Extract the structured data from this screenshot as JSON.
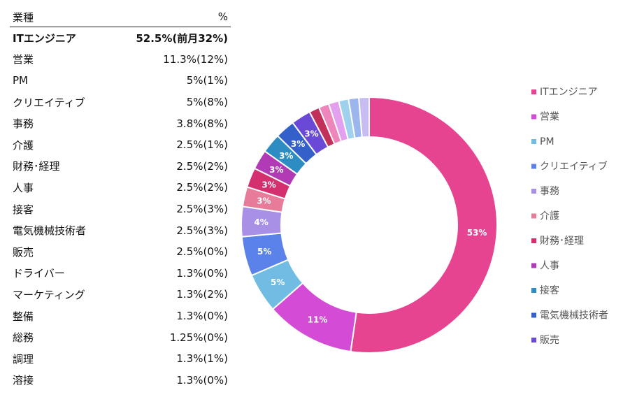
{
  "table": {
    "header": {
      "label": "業種",
      "value": "%"
    },
    "rows": [
      {
        "label": "ITエンジニア",
        "value": "52.5%(前月32%)",
        "bold": true
      },
      {
        "label": "営業",
        "value": "11.3%(12%)"
      },
      {
        "label": "PM",
        "value": "5%(1%)"
      },
      {
        "label": "クリエイティブ",
        "value": "5%(8%)"
      },
      {
        "label": "事務",
        "value": "3.8%(8%)"
      },
      {
        "label": "介護",
        "value": "2.5%(1%)"
      },
      {
        "label": "財務･経理",
        "value": "2.5%(2%)"
      },
      {
        "label": "人事",
        "value": "2.5%(2%)"
      },
      {
        "label": "接客",
        "value": "2.5%(3%)"
      },
      {
        "label": "電気機械技術者",
        "value": "2.5%(3%)"
      },
      {
        "label": "販売",
        "value": "2.5%(0%)"
      },
      {
        "label": "ドライバー",
        "value": "1.3%(0%)"
      },
      {
        "label": "マーケティング",
        "value": "1.3%(2%)"
      },
      {
        "label": "整備",
        "value": "1.3%(0%)"
      },
      {
        "label": "総務",
        "value": "1.25%(0%)"
      },
      {
        "label": "調理",
        "value": "1.3%(1%)"
      },
      {
        "label": "溶接",
        "value": "1.3%(0%)"
      }
    ]
  },
  "chart_data": {
    "type": "pie",
    "variant": "donut",
    "legend_position": "right",
    "slices": [
      {
        "name": "ITエンジニア",
        "value": 52.5,
        "label": "53%",
        "color": "#e64491",
        "legend": true
      },
      {
        "name": "営業",
        "value": 11.3,
        "label": "11%",
        "color": "#d44cd6",
        "legend": true
      },
      {
        "name": "PM",
        "value": 5,
        "label": "5%",
        "color": "#70bce3",
        "legend": true
      },
      {
        "name": "クリエイティブ",
        "value": 5,
        "label": "5%",
        "color": "#5a82e8",
        "legend": true
      },
      {
        "name": "事務",
        "value": 3.8,
        "label": "4%",
        "color": "#a790e6",
        "legend": true
      },
      {
        "name": "介護",
        "value": 2.5,
        "label": "3%",
        "color": "#e87a9a",
        "legend": true
      },
      {
        "name": "財務･経理",
        "value": 2.5,
        "label": "3%",
        "color": "#d42f6e",
        "legend": true
      },
      {
        "name": "人事",
        "value": 2.5,
        "label": "3%",
        "color": "#b03bb5",
        "legend": true
      },
      {
        "name": "接客",
        "value": 2.5,
        "label": "3%",
        "color": "#2d8cc2",
        "legend": true
      },
      {
        "name": "電気機械技術者",
        "value": 2.5,
        "label": "3%",
        "color": "#3360c9",
        "legend": true
      },
      {
        "name": "販売",
        "value": 2.5,
        "label": "3%",
        "color": "#6a49d6",
        "legend": true
      },
      {
        "name": "ドライバー",
        "value": 1.3,
        "label": "",
        "color": "#c2305a",
        "legend": false
      },
      {
        "name": "マーケティング",
        "value": 1.3,
        "label": "",
        "color": "#ee86bb",
        "legend": false
      },
      {
        "name": "整備",
        "value": 1.3,
        "label": "",
        "color": "#e3a0ee",
        "legend": false
      },
      {
        "name": "総務",
        "value": 1.25,
        "label": "",
        "color": "#9fd1ee",
        "legend": false
      },
      {
        "name": "調理",
        "value": 1.3,
        "label": "",
        "color": "#9bb6ee",
        "legend": false
      },
      {
        "name": "溶接",
        "value": 1.3,
        "label": "",
        "color": "#c8bdf2",
        "legend": false
      }
    ]
  }
}
